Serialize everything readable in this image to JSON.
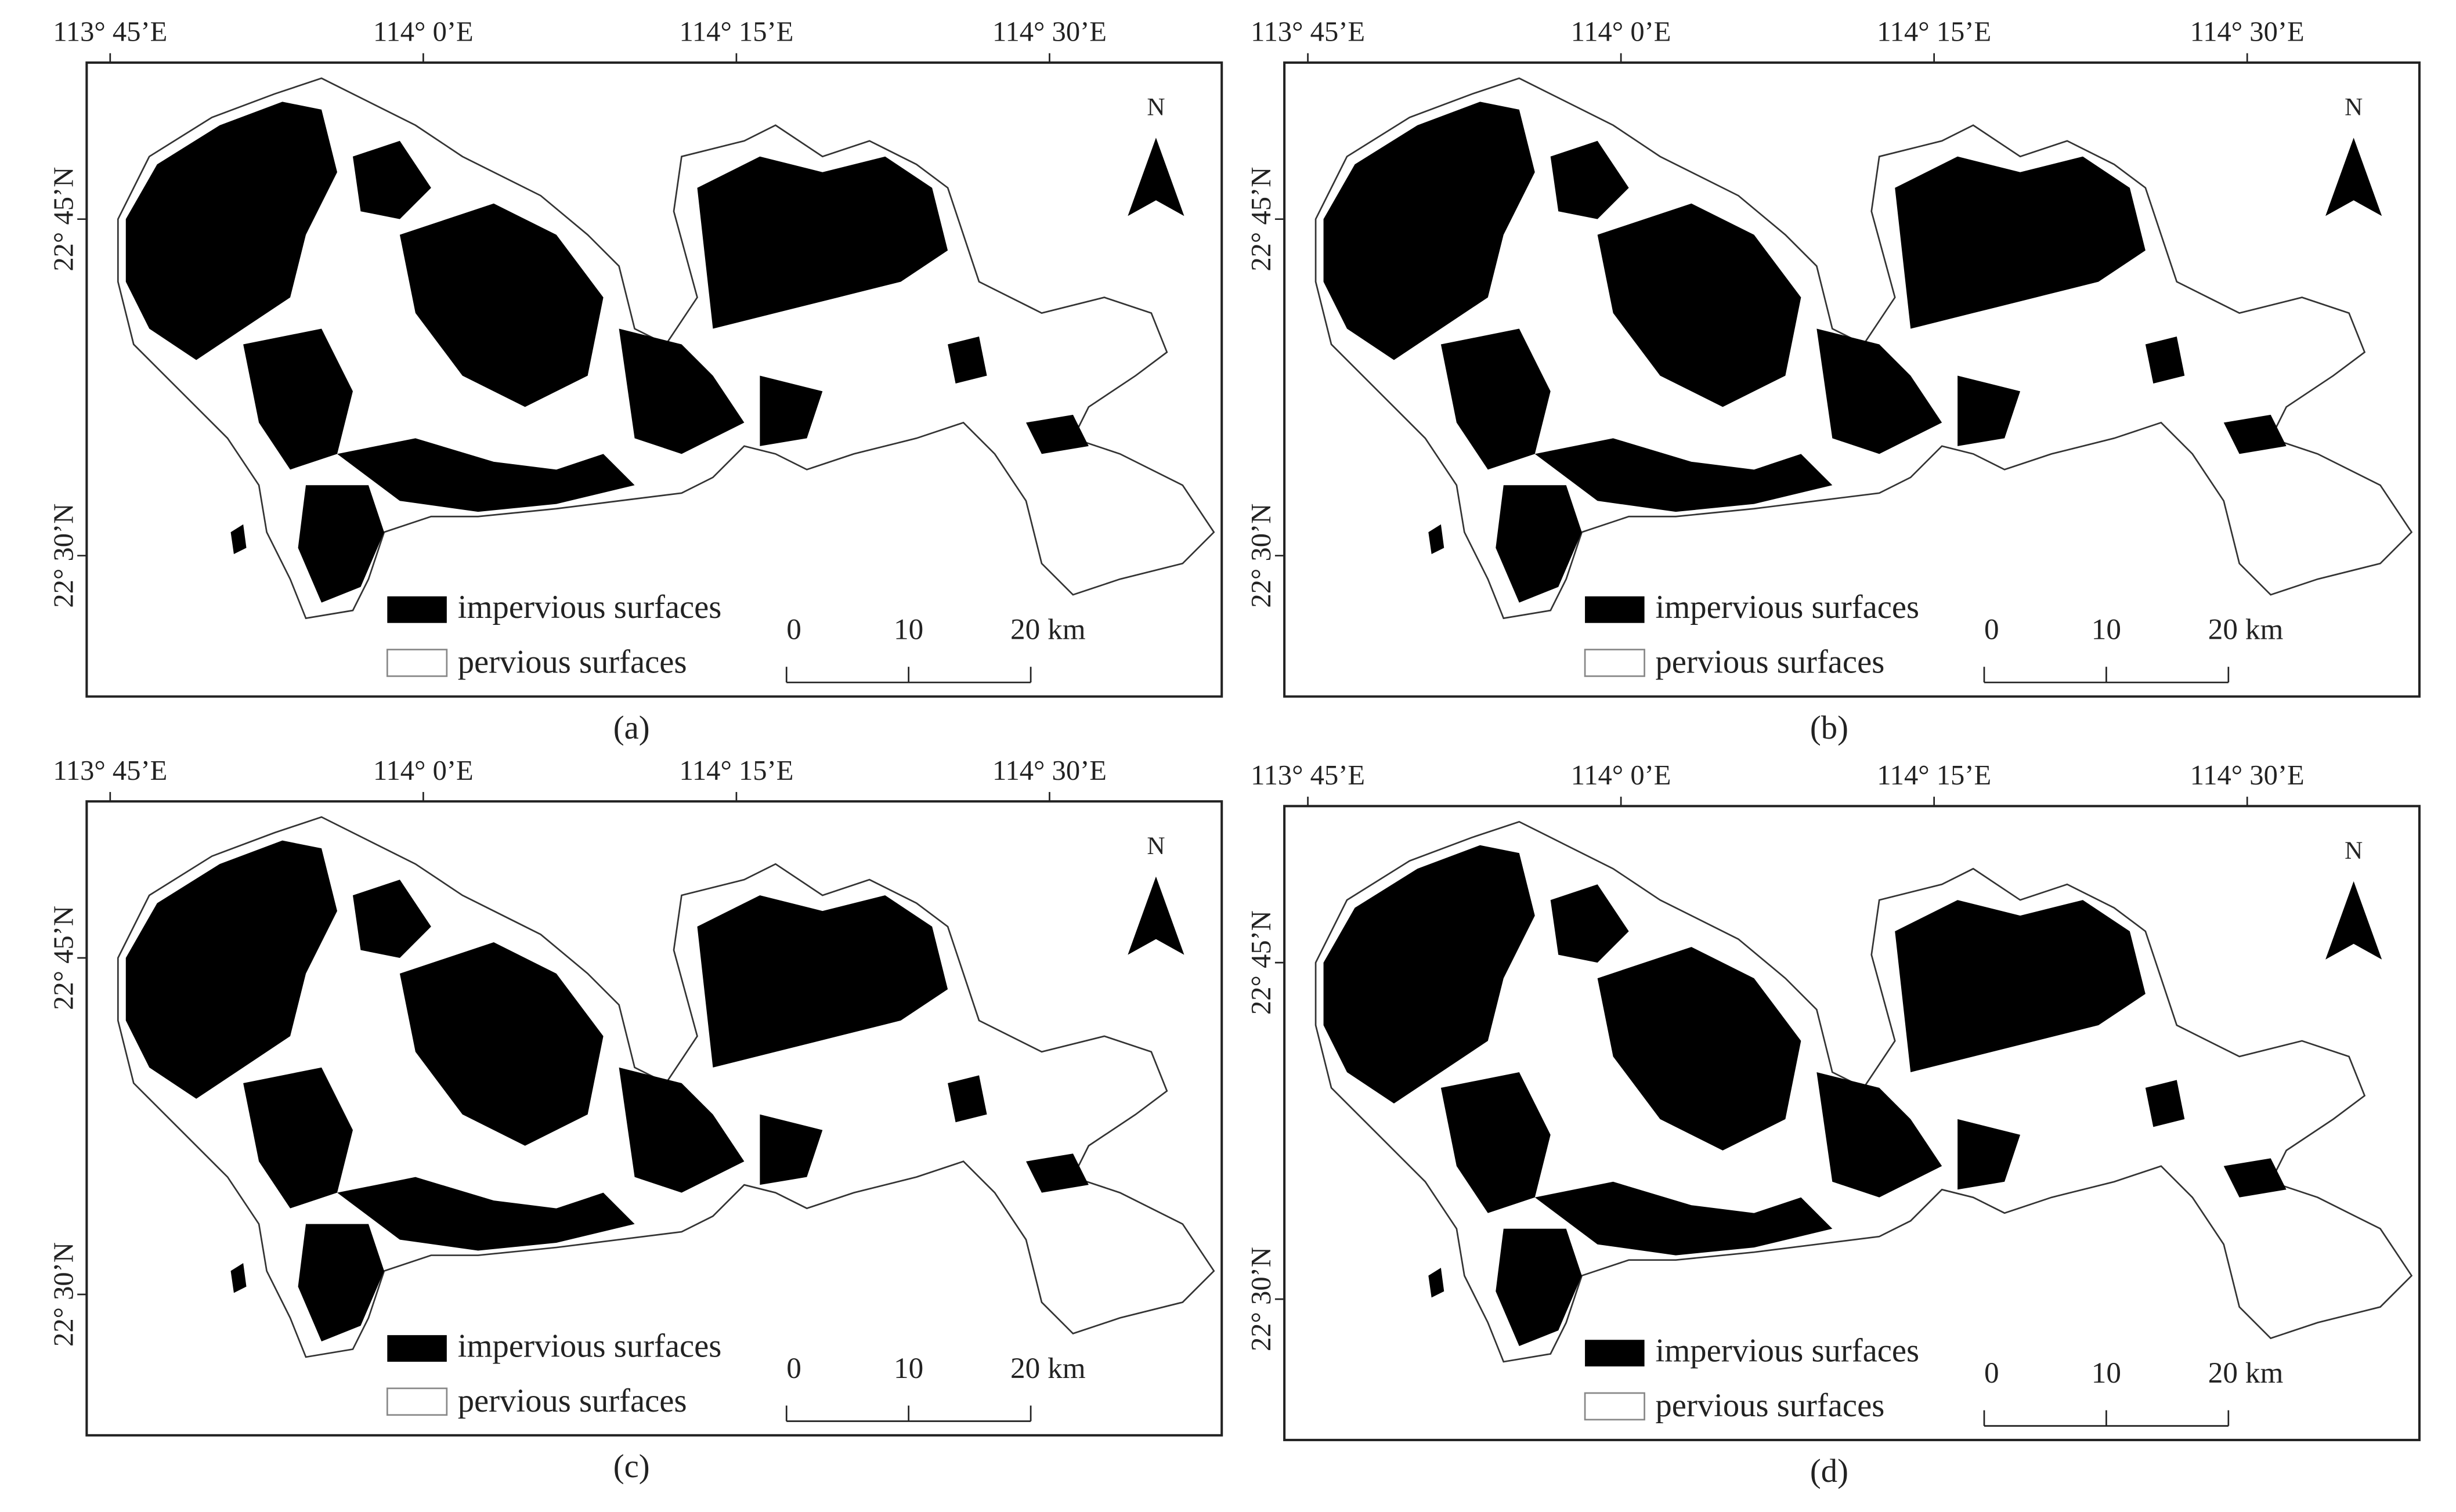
{
  "panels": [
    {
      "caption": "(a)",
      "lon_labels": [
        "113° 45’E",
        "114° 0’E",
        "114° 15’E",
        "114° 30’E"
      ],
      "lat_labels": [
        "22° 45’N",
        "22° 30’N"
      ],
      "north": "N",
      "legend": [
        "impervious surfaces",
        "pervious surfaces"
      ],
      "scale": [
        "0",
        "10",
        "20 km"
      ]
    },
    {
      "caption": "(b)",
      "lon_labels": [
        "113° 45’E",
        "114° 0’E",
        "114° 15’E",
        "114° 30’E"
      ],
      "lat_labels": [
        "22° 45’N",
        "22° 30’N"
      ],
      "north": "N",
      "legend": [
        "impervious surfaces",
        "pervious surfaces"
      ],
      "scale": [
        "0",
        "10",
        "20 km"
      ]
    },
    {
      "caption": "(c)",
      "lon_labels": [
        "113° 45’E",
        "114° 0’E",
        "114° 15’E",
        "114° 30’E"
      ],
      "lat_labels": [
        "22° 45’N",
        "22° 30’N"
      ],
      "north": "N",
      "legend": [
        "impervious surfaces",
        "pervious surfaces"
      ],
      "scale": [
        "0",
        "10",
        "20 km"
      ]
    },
    {
      "caption": "(d)",
      "lon_labels": [
        "113° 45’E",
        "114° 0’E",
        "114° 15’E",
        "114° 30’E"
      ],
      "lat_labels": [
        "22° 45’N",
        "22° 30’N"
      ],
      "north": "N",
      "legend": [
        "impervious surfaces",
        "pervious surfaces"
      ],
      "scale": [
        "0",
        "10",
        "20 km"
      ]
    }
  ]
}
